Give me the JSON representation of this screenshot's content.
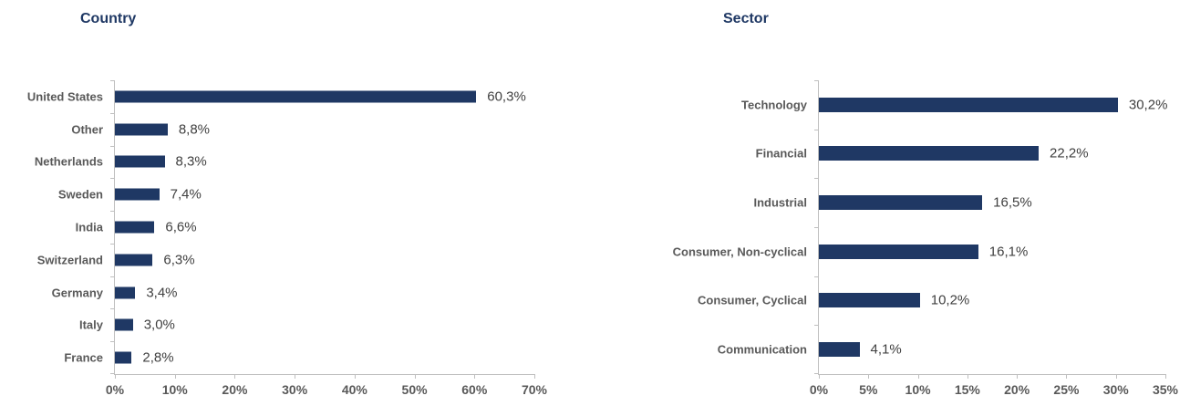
{
  "colors": {
    "bar": "#1F3864",
    "title": "#1F3864",
    "category_label": "#595959",
    "value_label": "#404040",
    "tick_label": "#595959",
    "axis_line": "#BFBFBF",
    "background": "#FFFFFF"
  },
  "chart_data": [
    {
      "type": "bar",
      "orientation": "horizontal",
      "title": "Country",
      "categories": [
        "United States",
        "Other",
        "Netherlands",
        "Sweden",
        "India",
        "Switzerland",
        "Germany",
        "Italy",
        "France"
      ],
      "values": [
        60.3,
        8.8,
        8.3,
        7.4,
        6.6,
        6.3,
        3.4,
        3.0,
        2.8
      ],
      "value_labels": [
        "60,3%",
        "8,8%",
        "8,3%",
        "7,4%",
        "6,6%",
        "6,3%",
        "3,4%",
        "3,0%",
        "2,8%"
      ],
      "xlim": [
        0,
        70
      ],
      "xtick_values": [
        0,
        10,
        20,
        30,
        40,
        50,
        60,
        70
      ],
      "xtick_labels": [
        "0%",
        "10%",
        "20%",
        "30%",
        "40%",
        "50%",
        "60%",
        "70%"
      ],
      "grid": false,
      "legend": false
    },
    {
      "type": "bar",
      "orientation": "horizontal",
      "title": "Sector",
      "categories": [
        "Technology",
        "Financial",
        "Industrial",
        "Consumer, Non-cyclical",
        "Consumer, Cyclical",
        "Communication"
      ],
      "values": [
        30.2,
        22.2,
        16.5,
        16.1,
        10.2,
        4.1
      ],
      "value_labels": [
        "30,2%",
        "22,2%",
        "16,5%",
        "16,1%",
        "10,2%",
        "4,1%"
      ],
      "xlim": [
        0,
        35
      ],
      "xtick_values": [
        0,
        5,
        10,
        15,
        20,
        25,
        30,
        35
      ],
      "xtick_labels": [
        "0%",
        "5%",
        "10%",
        "15%",
        "20%",
        "25%",
        "30%",
        "35%"
      ],
      "grid": false,
      "legend": false
    }
  ]
}
